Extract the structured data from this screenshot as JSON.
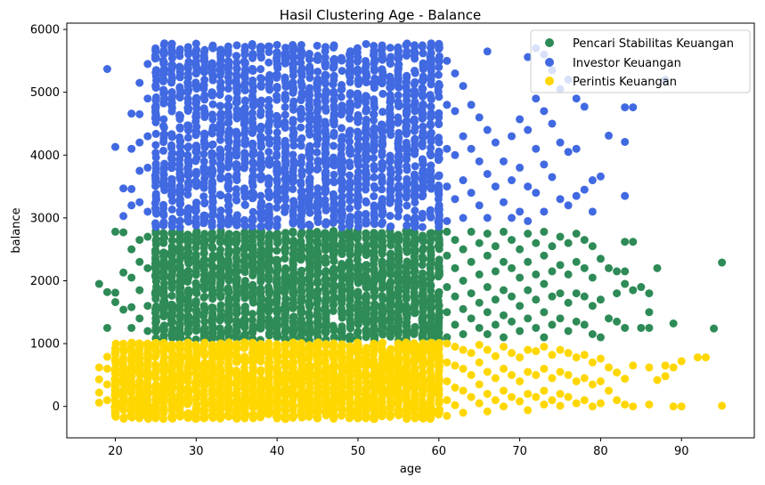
{
  "chart_data": {
    "type": "scatter",
    "title": "Hasil Clustering Age - Balance",
    "xlabel": "age",
    "ylabel": "balance",
    "xlim": [
      14,
      99
    ],
    "ylim": [
      -500,
      6100
    ],
    "xticks": [
      20,
      30,
      40,
      50,
      60,
      70,
      80,
      90
    ],
    "yticks": [
      0,
      1000,
      2000,
      3000,
      4000,
      5000,
      6000
    ],
    "grid": false,
    "legend_position": "top-right",
    "series": [
      {
        "name": "Pencari Stabilitas Keuangan",
        "color": "#2e8b57",
        "dense_region": {
          "x": [
            25,
            60
          ],
          "y": [
            1050,
            2800
          ]
        },
        "points": [
          [
            18,
            1950
          ],
          [
            19,
            1820
          ],
          [
            19,
            1250
          ],
          [
            20,
            2780
          ],
          [
            20,
            1810
          ],
          [
            20,
            1660
          ],
          [
            21,
            2770
          ],
          [
            21,
            2130
          ],
          [
            21,
            1540
          ],
          [
            22,
            2500
          ],
          [
            22,
            2050
          ],
          [
            22,
            1580
          ],
          [
            22,
            1250
          ],
          [
            23,
            2650
          ],
          [
            23,
            2300
          ],
          [
            23,
            1850
          ],
          [
            23,
            1400
          ],
          [
            24,
            2700
          ],
          [
            24,
            2200
          ],
          [
            24,
            1600
          ],
          [
            24,
            1200
          ],
          [
            61,
            2780
          ],
          [
            61,
            2400
          ],
          [
            61,
            1900
          ],
          [
            61,
            1500
          ],
          [
            61,
            1100
          ],
          [
            62,
            2650
          ],
          [
            62,
            2200
          ],
          [
            62,
            1750
          ],
          [
            62,
            1300
          ],
          [
            63,
            2500
          ],
          [
            63,
            2000
          ],
          [
            63,
            1550
          ],
          [
            63,
            1150
          ],
          [
            64,
            2780
          ],
          [
            64,
            2300
          ],
          [
            64,
            1800
          ],
          [
            64,
            1400
          ],
          [
            65,
            2600
          ],
          [
            65,
            2100
          ],
          [
            65,
            1650
          ],
          [
            65,
            1250
          ],
          [
            66,
            2750
          ],
          [
            66,
            2400
          ],
          [
            66,
            1900
          ],
          [
            66,
            1500
          ],
          [
            66,
            1150
          ],
          [
            67,
            2550
          ],
          [
            67,
            2150
          ],
          [
            67,
            1700
          ],
          [
            67,
            1300
          ],
          [
            68,
            2780
          ],
          [
            68,
            2300
          ],
          [
            68,
            1850
          ],
          [
            68,
            1450
          ],
          [
            68,
            1100
          ],
          [
            69,
            2650
          ],
          [
            69,
            2200
          ],
          [
            69,
            1750
          ],
          [
            69,
            1350
          ],
          [
            70,
            2500
          ],
          [
            70,
            2050
          ],
          [
            70,
            1600
          ],
          [
            70,
            1200
          ],
          [
            71,
            2750
          ],
          [
            71,
            2300
          ],
          [
            71,
            1850
          ],
          [
            71,
            1400
          ],
          [
            72,
            2600
          ],
          [
            72,
            2100
          ],
          [
            72,
            1700
          ],
          [
            72,
            1250
          ],
          [
            73,
            2780
          ],
          [
            73,
            2400
          ],
          [
            73,
            1950
          ],
          [
            73,
            1500
          ],
          [
            73,
            1100
          ],
          [
            74,
            2550
          ],
          [
            74,
            2150
          ],
          [
            74,
            1750
          ],
          [
            74,
            1300
          ],
          [
            75,
            2700
          ],
          [
            75,
            2250
          ],
          [
            75,
            1800
          ],
          [
            75,
            1400
          ],
          [
            76,
            2600
          ],
          [
            76,
            2100
          ],
          [
            76,
            1650
          ],
          [
            76,
            1200
          ],
          [
            77,
            2750
          ],
          [
            77,
            2300
          ],
          [
            77,
            1800
          ],
          [
            77,
            1350
          ],
          [
            78,
            2650
          ],
          [
            78,
            2200
          ],
          [
            78,
            1750
          ],
          [
            78,
            1300
          ],
          [
            79,
            2550
          ],
          [
            79,
            2050
          ],
          [
            79,
            1600
          ],
          [
            79,
            1150
          ],
          [
            80,
            2350
          ],
          [
            80,
            1700
          ],
          [
            80,
            1100
          ],
          [
            81,
            2200
          ],
          [
            81,
            1400
          ],
          [
            82,
            2150
          ],
          [
            82,
            1800
          ],
          [
            82,
            1350
          ],
          [
            83,
            2620
          ],
          [
            83,
            2150
          ],
          [
            83,
            1950
          ],
          [
            83,
            1250
          ],
          [
            84,
            2620
          ],
          [
            84,
            1850
          ],
          [
            85,
            1900
          ],
          [
            85,
            1250
          ],
          [
            86,
            1800
          ],
          [
            86,
            1500
          ],
          [
            86,
            1250
          ],
          [
            87,
            2200
          ],
          [
            89,
            1320
          ],
          [
            94,
            1240
          ],
          [
            95,
            2290
          ]
        ]
      },
      {
        "name": "Investor Keuangan",
        "color": "#4169e1",
        "dense_region": {
          "x": [
            25,
            60
          ],
          "y": [
            2850,
            5780
          ]
        },
        "points": [
          [
            19,
            5370
          ],
          [
            20,
            4130
          ],
          [
            21,
            3470
          ],
          [
            21,
            3030
          ],
          [
            22,
            4660
          ],
          [
            22,
            4100
          ],
          [
            22,
            3460
          ],
          [
            22,
            3200
          ],
          [
            23,
            5150
          ],
          [
            23,
            4650
          ],
          [
            23,
            4200
          ],
          [
            23,
            3750
          ],
          [
            23,
            3250
          ],
          [
            24,
            5450
          ],
          [
            24,
            4900
          ],
          [
            24,
            4300
          ],
          [
            24,
            3800
          ],
          [
            24,
            3100
          ],
          [
            61,
            5500
          ],
          [
            61,
            4800
          ],
          [
            61,
            4100
          ],
          [
            61,
            3500
          ],
          [
            61,
            2950
          ],
          [
            62,
            5300
          ],
          [
            62,
            4700
          ],
          [
            62,
            4000
          ],
          [
            62,
            3300
          ],
          [
            63,
            5100
          ],
          [
            63,
            4300
          ],
          [
            63,
            3600
          ],
          [
            63,
            3000
          ],
          [
            64,
            4800
          ],
          [
            64,
            4100
          ],
          [
            64,
            3400
          ],
          [
            65,
            4600
          ],
          [
            65,
            3900
          ],
          [
            65,
            3200
          ],
          [
            66,
            5650
          ],
          [
            66,
            4400
          ],
          [
            66,
            3700
          ],
          [
            66,
            3000
          ],
          [
            67,
            4200
          ],
          [
            67,
            3500
          ],
          [
            68,
            3900
          ],
          [
            68,
            3250
          ],
          [
            69,
            4300
          ],
          [
            69,
            3600
          ],
          [
            69,
            3000
          ],
          [
            70,
            4570
          ],
          [
            70,
            3800
          ],
          [
            70,
            3100
          ],
          [
            71,
            5560
          ],
          [
            71,
            4400
          ],
          [
            71,
            3500
          ],
          [
            71,
            2950
          ],
          [
            72,
            5700
          ],
          [
            72,
            4900
          ],
          [
            72,
            4100
          ],
          [
            72,
            3400
          ],
          [
            73,
            5600
          ],
          [
            73,
            4700
          ],
          [
            73,
            3850
          ],
          [
            73,
            3100
          ],
          [
            74,
            5350
          ],
          [
            74,
            4500
          ],
          [
            74,
            3650
          ],
          [
            75,
            5050
          ],
          [
            75,
            4200
          ],
          [
            75,
            3300
          ],
          [
            76,
            5200
          ],
          [
            76,
            4050
          ],
          [
            76,
            3200
          ],
          [
            77,
            4900
          ],
          [
            77,
            4100
          ],
          [
            77,
            3350
          ],
          [
            78,
            4770
          ],
          [
            78,
            3450
          ],
          [
            79,
            3600
          ],
          [
            79,
            3100
          ],
          [
            80,
            3660
          ],
          [
            81,
            4310
          ],
          [
            83,
            4760
          ],
          [
            83,
            4210
          ],
          [
            83,
            3350
          ],
          [
            84,
            4760
          ],
          [
            88,
            5200
          ]
        ]
      },
      {
        "name": "Perintis Keuangan",
        "color": "#ffd700",
        "dense_region": {
          "x": [
            20,
            60
          ],
          "y": [
            -200,
            1020
          ]
        },
        "points": [
          [
            18,
            620
          ],
          [
            18,
            430
          ],
          [
            18,
            220
          ],
          [
            18,
            60
          ],
          [
            19,
            790
          ],
          [
            19,
            600
          ],
          [
            19,
            350
          ],
          [
            19,
            100
          ],
          [
            61,
            1000
          ],
          [
            61,
            700
          ],
          [
            61,
            400
          ],
          [
            61,
            100
          ],
          [
            61,
            -150
          ],
          [
            62,
            950
          ],
          [
            62,
            650
          ],
          [
            62,
            300
          ],
          [
            62,
            20
          ],
          [
            63,
            900
          ],
          [
            63,
            600
          ],
          [
            63,
            250
          ],
          [
            63,
            -100
          ],
          [
            64,
            850
          ],
          [
            64,
            500
          ],
          [
            64,
            150
          ],
          [
            65,
            980
          ],
          [
            65,
            700
          ],
          [
            65,
            350
          ],
          [
            65,
            50
          ],
          [
            66,
            900
          ],
          [
            66,
            550
          ],
          [
            66,
            200
          ],
          [
            66,
            -80
          ],
          [
            67,
            800
          ],
          [
            67,
            450
          ],
          [
            67,
            100
          ],
          [
            68,
            950
          ],
          [
            68,
            600
          ],
          [
            68,
            250
          ],
          [
            68,
            0
          ],
          [
            69,
            850
          ],
          [
            69,
            500
          ],
          [
            69,
            150
          ],
          [
            70,
            780
          ],
          [
            70,
            400
          ],
          [
            70,
            80
          ],
          [
            71,
            900
          ],
          [
            71,
            550
          ],
          [
            71,
            200
          ],
          [
            71,
            -60
          ],
          [
            72,
            880
          ],
          [
            72,
            500
          ],
          [
            72,
            150
          ],
          [
            73,
            950
          ],
          [
            73,
            600
          ],
          [
            73,
            250
          ],
          [
            73,
            30
          ],
          [
            74,
            820
          ],
          [
            74,
            450
          ],
          [
            74,
            100
          ],
          [
            75,
            900
          ],
          [
            75,
            550
          ],
          [
            75,
            200
          ],
          [
            75,
            10
          ],
          [
            76,
            850
          ],
          [
            76,
            500
          ],
          [
            76,
            150
          ],
          [
            77,
            780
          ],
          [
            77,
            400
          ],
          [
            77,
            50
          ],
          [
            78,
            820
          ],
          [
            78,
            450
          ],
          [
            78,
            100
          ],
          [
            79,
            700
          ],
          [
            79,
            350
          ],
          [
            79,
            0
          ],
          [
            80,
            760
          ],
          [
            80,
            400
          ],
          [
            80,
            50
          ],
          [
            81,
            620
          ],
          [
            81,
            250
          ],
          [
            82,
            540
          ],
          [
            82,
            100
          ],
          [
            83,
            440
          ],
          [
            83,
            30
          ],
          [
            84,
            650
          ],
          [
            84,
            0
          ],
          [
            86,
            620
          ],
          [
            86,
            30
          ],
          [
            87,
            420
          ],
          [
            88,
            650
          ],
          [
            88,
            480
          ],
          [
            89,
            620
          ],
          [
            89,
            0
          ],
          [
            90,
            720
          ],
          [
            90,
            0
          ],
          [
            92,
            780
          ],
          [
            93,
            780
          ],
          [
            95,
            10
          ]
        ]
      }
    ]
  }
}
